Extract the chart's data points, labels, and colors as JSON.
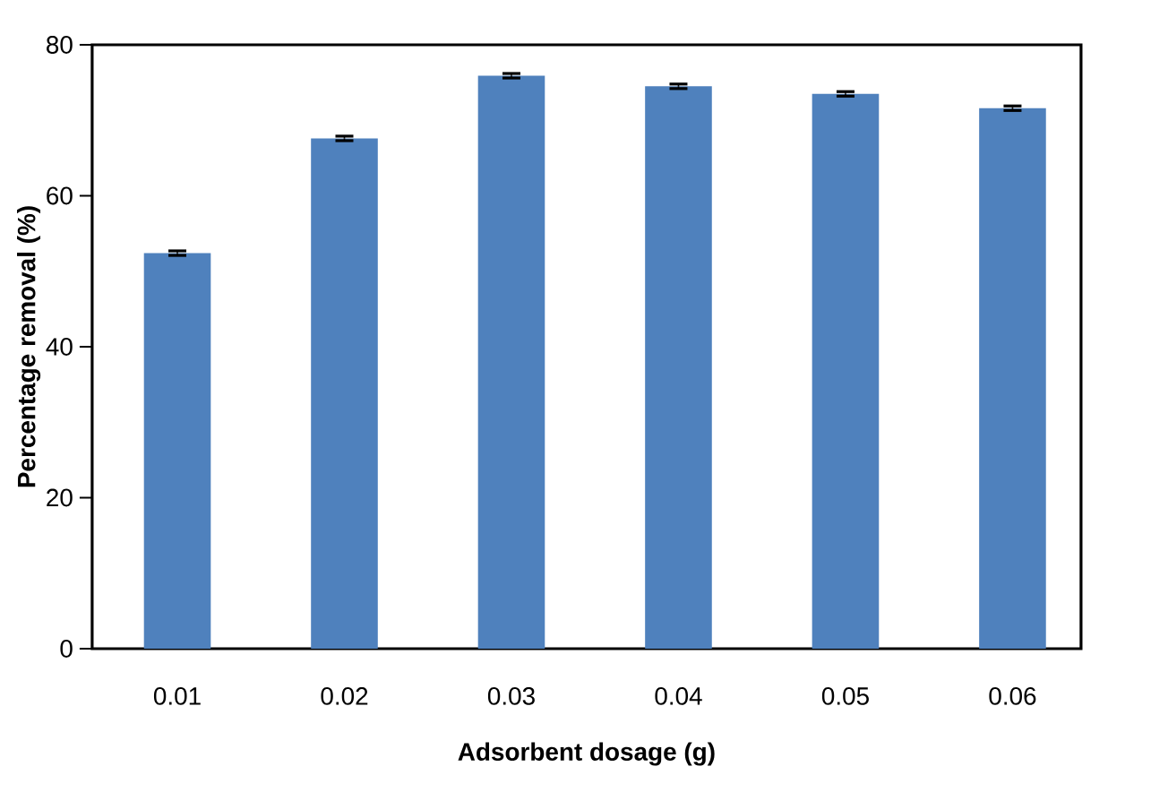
{
  "chart_data": {
    "type": "bar",
    "xlabel": "Adsorbent dosage (g)",
    "ylabel": "Percentage removal (%)",
    "categories": [
      "0.01",
      "0.02",
      "0.03",
      "0.04",
      "0.05",
      "0.06"
    ],
    "values": [
      52.4,
      67.6,
      75.9,
      74.5,
      73.5,
      71.6
    ],
    "errors": [
      0.3,
      0.3,
      0.3,
      0.3,
      0.3,
      0.3
    ],
    "color": "#4f81bd",
    "ylim": [
      0,
      80
    ],
    "yticks": [
      0,
      20,
      40,
      60,
      80
    ],
    "grid": false
  }
}
